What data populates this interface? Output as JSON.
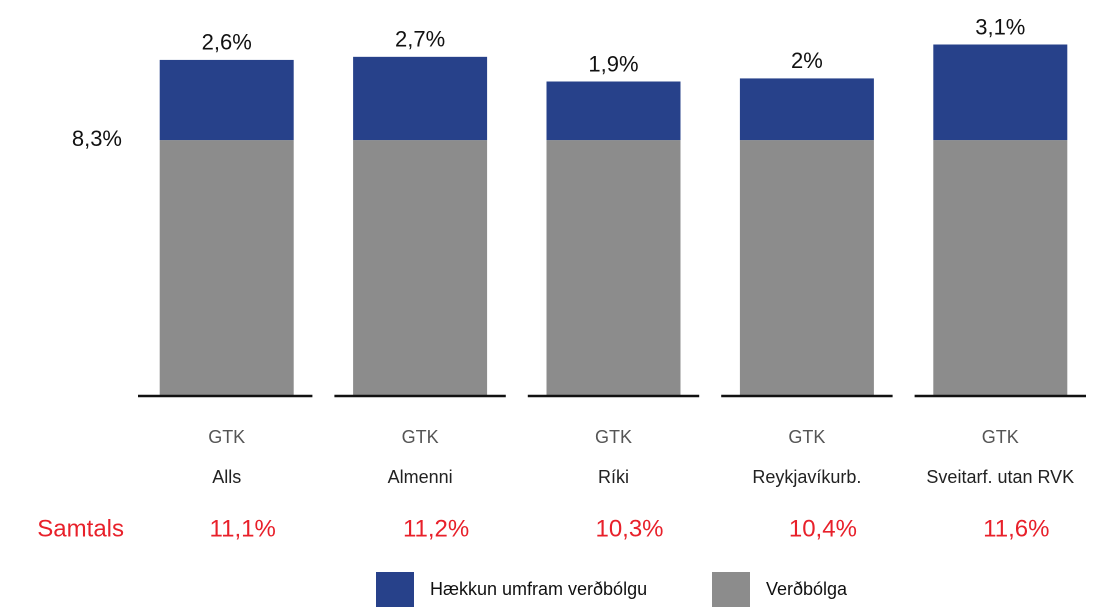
{
  "chart_data": {
    "type": "stacked_bar",
    "categories": [
      [
        "GTK",
        "Alls"
      ],
      [
        "GTK",
        "Almenni"
      ],
      [
        "GTK",
        "Ríki"
      ],
      [
        "GTK",
        "Reykjavíkurb."
      ],
      [
        "GTK",
        "Sveitarf. utan RVK"
      ]
    ],
    "series": [
      {
        "name": "Verðbólga",
        "color": "#8c8c8c",
        "values": [
          8.3,
          8.3,
          8.3,
          8.3,
          8.3
        ],
        "value_labels": [
          "8,3%",
          null,
          null,
          null,
          null
        ]
      },
      {
        "name": "Hækkun umfram verðbólgu",
        "color": "#27418a",
        "values": [
          2.6,
          2.7,
          1.9,
          2,
          3.1
        ],
        "value_labels": [
          "2,6%",
          "2,7%",
          "1,9%",
          "2%",
          "3,1%"
        ]
      }
    ],
    "totals": {
      "label": "Samtals",
      "values": [
        11.1,
        11.2,
        10.3,
        10.4,
        11.6
      ],
      "value_labels": [
        "11,1%",
        "11,2%",
        "10,3%",
        "10,4%",
        "11,6%"
      ]
    },
    "ylim": [
      0,
      12
    ]
  }
}
